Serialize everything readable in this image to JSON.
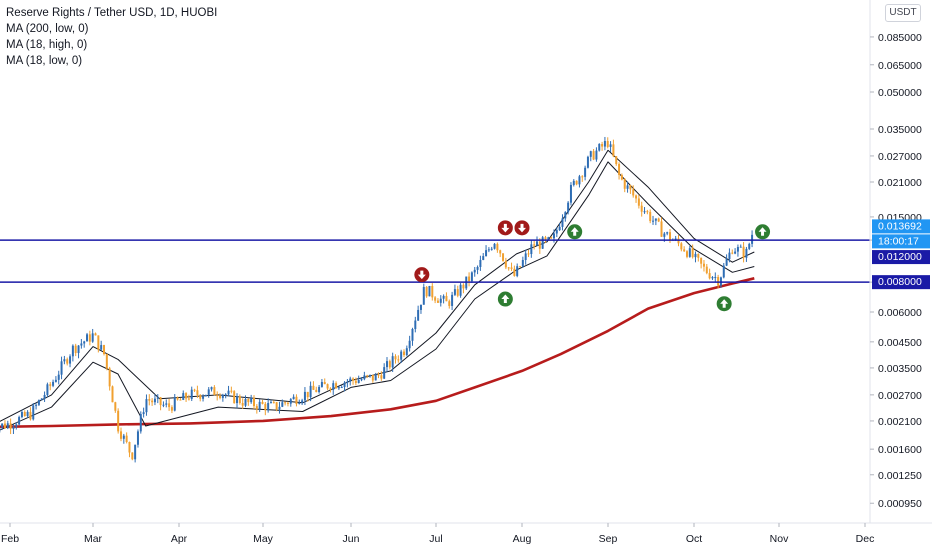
{
  "legend": {
    "title": "Reserve Rights / Tether USD, 1D, HUOBI",
    "ma1": "MA (200, low, 0)",
    "ma2": "MA (18, high, 0)",
    "ma3": "MA (18, low, 0)"
  },
  "currency": "USDT",
  "colors": {
    "up": "#2e6db4",
    "down": "#f0a030",
    "ma200": "#b71c1c",
    "ma18": "#131722",
    "hline": "#1a1aa6",
    "arrow_down": "#a11a1a",
    "arrow_up": "#2e7d32",
    "last_price": "#2196f3"
  },
  "price_axis": [
    "0.085000",
    "0.065000",
    "0.050000",
    "0.035000",
    "0.027000",
    "0.021000",
    "0.015000",
    "0.012000",
    "0.008000",
    "0.006000",
    "0.004500",
    "0.003500",
    "0.002700",
    "0.002100",
    "0.001600",
    "0.001250",
    "0.000950"
  ],
  "time_axis": [
    "Feb",
    "Mar",
    "Apr",
    "May",
    "Jun",
    "Jul",
    "Aug",
    "Sep",
    "Oct",
    "Nov",
    "Dec"
  ],
  "price_labels": {
    "last_price": "0.013692",
    "countdown": "18:00:17",
    "line_upper": "0.012000",
    "line_lower": "0.008000"
  },
  "chart_data": {
    "type": "candlestick",
    "symbol": "Reserve Rights / Tether USD",
    "interval": "1D",
    "exchange": "HUOBI",
    "y_scale": "log",
    "ylim": [
      0.00085,
      0.09
    ],
    "horizontal_lines": [
      0.012,
      0.008
    ],
    "series": [
      {
        "name": "MA (200, low, 0)",
        "points": [
          [
            "Jan 25",
            0.00198
          ],
          [
            "Feb 15",
            0.002
          ],
          [
            "Mar 10",
            0.00203
          ],
          [
            "Apr 5",
            0.00205
          ],
          [
            "May 1",
            0.0021
          ],
          [
            "May 25",
            0.0022
          ],
          [
            "Jun 15",
            0.00235
          ],
          [
            "Jul 1",
            0.00255
          ],
          [
            "Jul 15",
            0.0029
          ],
          [
            "Aug 1",
            0.0034
          ],
          [
            "Aug 15",
            0.004
          ],
          [
            "Sep 1",
            0.005
          ],
          [
            "Sep 15",
            0.0062
          ],
          [
            "Oct 1",
            0.0072
          ],
          [
            "Oct 15",
            0.0079
          ],
          [
            "Oct 23",
            0.0083
          ]
        ]
      },
      {
        "name": "MA (18, high, 0)",
        "points": [
          [
            "Jan 25",
            0.002
          ],
          [
            "Feb 15",
            0.0027
          ],
          [
            "Mar 1",
            0.0043
          ],
          [
            "Mar 10",
            0.0038
          ],
          [
            "Mar 25",
            0.0026
          ],
          [
            "Apr 15",
            0.0027
          ],
          [
            "May 15",
            0.0025
          ],
          [
            "Jun 1",
            0.0031
          ],
          [
            "Jun 15",
            0.0034
          ],
          [
            "Jul 1",
            0.0049
          ],
          [
            "Jul 15",
            0.0078
          ],
          [
            "Jul 30",
            0.0105
          ],
          [
            "Aug 10",
            0.0118
          ],
          [
            "Aug 25",
            0.021
          ],
          [
            "Sep 1",
            0.0285
          ],
          [
            "Sep 15",
            0.02
          ],
          [
            "Oct 1",
            0.0122
          ],
          [
            "Oct 15",
            0.0097
          ],
          [
            "Oct 23",
            0.0107
          ]
        ]
      },
      {
        "name": "MA (18, low, 0)",
        "points": [
          [
            "Jan 25",
            0.00185
          ],
          [
            "Feb 15",
            0.0024
          ],
          [
            "Mar 1",
            0.0037
          ],
          [
            "Mar 10",
            0.0033
          ],
          [
            "Mar 20",
            0.002
          ],
          [
            "Apr 15",
            0.0024
          ],
          [
            "May 15",
            0.0023
          ],
          [
            "Jun 1",
            0.0029
          ],
          [
            "Jun 15",
            0.0031
          ],
          [
            "Jul 1",
            0.0042
          ],
          [
            "Jul 15",
            0.0068
          ],
          [
            "Jul 30",
            0.009
          ],
          [
            "Aug 10",
            0.0103
          ],
          [
            "Aug 25",
            0.0185
          ],
          [
            "Sep 1",
            0.0255
          ],
          [
            "Sep 15",
            0.017
          ],
          [
            "Oct 1",
            0.011
          ],
          [
            "Oct 15",
            0.0088
          ],
          [
            "Oct 23",
            0.0093
          ]
        ]
      }
    ],
    "candles_close": [
      [
        "Jan 25",
        0.00195
      ],
      [
        "Feb 1",
        0.00205
      ],
      [
        "Feb 8",
        0.00225
      ],
      [
        "Feb 15",
        0.003
      ],
      [
        "Feb 22",
        0.0042
      ],
      [
        "Mar 1",
        0.0048
      ],
      [
        "Mar 5",
        0.004
      ],
      [
        "Mar 10",
        0.002
      ],
      [
        "Mar 15",
        0.0015
      ],
      [
        "Mar 20",
        0.0026
      ],
      [
        "Mar 28",
        0.0024
      ],
      [
        "Apr 5",
        0.0027
      ],
      [
        "Apr 15",
        0.0028
      ],
      [
        "Apr 25",
        0.0025
      ],
      [
        "May 5",
        0.0024
      ],
      [
        "May 15",
        0.0027
      ],
      [
        "May 25",
        0.003
      ],
      [
        "Jun 1",
        0.0031
      ],
      [
        "Jun 10",
        0.0032
      ],
      [
        "Jun 20",
        0.0042
      ],
      [
        "Jun 27",
        0.0075
      ],
      [
        "Jul 5",
        0.0065
      ],
      [
        "Jul 15",
        0.0088
      ],
      [
        "Jul 22",
        0.012
      ],
      [
        "Jul 29",
        0.0084
      ],
      [
        "Aug 5",
        0.0115
      ],
      [
        "Aug 12",
        0.0118
      ],
      [
        "Aug 19",
        0.02
      ],
      [
        "Aug 26",
        0.027
      ],
      [
        "Sep 1",
        0.031
      ],
      [
        "Sep 5",
        0.022
      ],
      [
        "Sep 12",
        0.017
      ],
      [
        "Sep 20",
        0.013
      ],
      [
        "Sep 28",
        0.011
      ],
      [
        "Oct 5",
        0.009
      ],
      [
        "Oct 10",
        0.0082
      ],
      [
        "Oct 15",
        0.0112
      ],
      [
        "Oct 20",
        0.0105
      ],
      [
        "Oct 23",
        0.01369
      ]
    ],
    "annotations": [
      {
        "type": "arrow_down",
        "x": "Jun 26",
        "y": 0.0086
      },
      {
        "type": "arrow_down",
        "x": "Jul 26",
        "y": 0.0135
      },
      {
        "type": "arrow_down",
        "x": "Aug 1",
        "y": 0.0135
      },
      {
        "type": "arrow_up",
        "x": "Jul 26",
        "y": 0.0068
      },
      {
        "type": "arrow_up",
        "x": "Aug 20",
        "y": 0.013
      },
      {
        "type": "arrow_up",
        "x": "Oct 12",
        "y": 0.0065
      },
      {
        "type": "arrow_up",
        "x": "Oct 26",
        "y": 0.013
      }
    ]
  }
}
